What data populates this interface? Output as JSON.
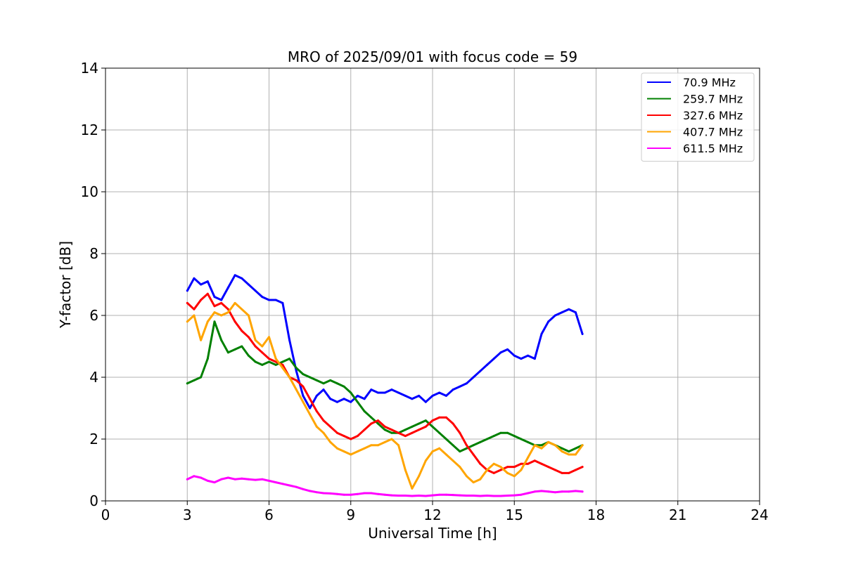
{
  "chart_data": {
    "type": "line",
    "title": "MRO of 2025/09/01 with focus code = 59",
    "xlabel": "Universal Time [h]",
    "ylabel": "Y-factor [dB]",
    "xlim": [
      0,
      24
    ],
    "ylim": [
      0,
      14
    ],
    "xticks": [
      0,
      3,
      6,
      9,
      12,
      15,
      18,
      21,
      24
    ],
    "yticks": [
      0,
      2,
      4,
      6,
      8,
      10,
      12,
      14
    ],
    "grid": true,
    "legend_position": "top-right",
    "series": [
      {
        "name": " 70.9 MHz",
        "color": "#0000ff",
        "x": [
          3.0,
          3.25,
          3.5,
          3.75,
          4.0,
          4.25,
          4.5,
          4.75,
          5.0,
          5.25,
          5.5,
          5.75,
          6.0,
          6.25,
          6.5,
          6.75,
          7.0,
          7.25,
          7.5,
          7.75,
          8.0,
          8.25,
          8.5,
          8.75,
          9.0,
          9.25,
          9.5,
          9.75,
          10.0,
          10.25,
          10.5,
          10.75,
          11.0,
          11.25,
          11.5,
          11.75,
          12.0,
          12.25,
          12.5,
          12.75,
          13.0,
          13.25,
          13.5,
          13.75,
          14.0,
          14.25,
          14.5,
          14.75,
          15.0,
          15.25,
          15.5,
          15.75,
          16.0,
          16.25,
          16.5,
          16.75,
          17.0,
          17.25,
          17.5
        ],
        "y": [
          6.8,
          7.2,
          7.0,
          7.1,
          6.6,
          6.5,
          6.9,
          7.3,
          7.2,
          7.0,
          6.8,
          6.6,
          6.5,
          6.5,
          6.4,
          5.2,
          4.2,
          3.4,
          3.0,
          3.4,
          3.6,
          3.3,
          3.2,
          3.3,
          3.2,
          3.4,
          3.3,
          3.6,
          3.5,
          3.5,
          3.6,
          3.5,
          3.4,
          3.3,
          3.4,
          3.2,
          3.4,
          3.5,
          3.4,
          3.6,
          3.7,
          3.8,
          4.0,
          4.2,
          4.4,
          4.6,
          4.8,
          4.9,
          4.7,
          4.6,
          4.7,
          4.6,
          5.4,
          5.8,
          6.0,
          6.1,
          6.2,
          6.1,
          5.4
        ]
      },
      {
        "name": "259.7 MHz",
        "color": "#008000",
        "x": [
          3.0,
          3.25,
          3.5,
          3.75,
          4.0,
          4.25,
          4.5,
          4.75,
          5.0,
          5.25,
          5.5,
          5.75,
          6.0,
          6.25,
          6.5,
          6.75,
          7.0,
          7.25,
          7.5,
          7.75,
          8.0,
          8.25,
          8.5,
          8.75,
          9.0,
          9.25,
          9.5,
          9.75,
          10.0,
          10.25,
          10.5,
          10.75,
          11.0,
          11.25,
          11.5,
          11.75,
          12.0,
          12.25,
          12.5,
          12.75,
          13.0,
          13.25,
          13.5,
          13.75,
          14.0,
          14.25,
          14.5,
          14.75,
          15.0,
          15.25,
          15.5,
          15.75,
          16.0,
          16.25,
          16.5,
          16.75,
          17.0,
          17.25,
          17.5
        ],
        "y": [
          3.8,
          3.9,
          4.0,
          4.6,
          5.8,
          5.2,
          4.8,
          4.9,
          5.0,
          4.7,
          4.5,
          4.4,
          4.5,
          4.4,
          4.5,
          4.6,
          4.3,
          4.1,
          4.0,
          3.9,
          3.8,
          3.9,
          3.8,
          3.7,
          3.5,
          3.2,
          2.9,
          2.7,
          2.5,
          2.3,
          2.2,
          2.2,
          2.3,
          2.4,
          2.5,
          2.6,
          2.4,
          2.2,
          2.0,
          1.8,
          1.6,
          1.7,
          1.8,
          1.9,
          2.0,
          2.1,
          2.2,
          2.2,
          2.1,
          2.0,
          1.9,
          1.8,
          1.8,
          1.9,
          1.8,
          1.7,
          1.6,
          1.7,
          1.8
        ]
      },
      {
        "name": "327.6 MHz",
        "color": "#ff0000",
        "x": [
          3.0,
          3.25,
          3.5,
          3.75,
          4.0,
          4.25,
          4.5,
          4.75,
          5.0,
          5.25,
          5.5,
          5.75,
          6.0,
          6.25,
          6.5,
          6.75,
          7.0,
          7.25,
          7.5,
          7.75,
          8.0,
          8.25,
          8.5,
          8.75,
          9.0,
          9.25,
          9.5,
          9.75,
          10.0,
          10.25,
          10.5,
          10.75,
          11.0,
          11.25,
          11.5,
          11.75,
          12.0,
          12.25,
          12.5,
          12.75,
          13.0,
          13.25,
          13.5,
          13.75,
          14.0,
          14.25,
          14.5,
          14.75,
          15.0,
          15.25,
          15.5,
          15.75,
          16.0,
          16.25,
          16.5,
          16.75,
          17.0,
          17.25,
          17.5
        ],
        "y": [
          6.4,
          6.2,
          6.5,
          6.7,
          6.3,
          6.4,
          6.2,
          5.8,
          5.5,
          5.3,
          5.0,
          4.8,
          4.6,
          4.5,
          4.4,
          4.0,
          3.9,
          3.7,
          3.3,
          2.9,
          2.6,
          2.4,
          2.2,
          2.1,
          2.0,
          2.1,
          2.3,
          2.5,
          2.6,
          2.4,
          2.3,
          2.2,
          2.1,
          2.2,
          2.3,
          2.4,
          2.6,
          2.7,
          2.7,
          2.5,
          2.2,
          1.8,
          1.5,
          1.2,
          1.0,
          0.9,
          1.0,
          1.1,
          1.1,
          1.2,
          1.2,
          1.3,
          1.2,
          1.1,
          1.0,
          0.9,
          0.9,
          1.0,
          1.1
        ]
      },
      {
        "name": "407.7 MHz",
        "color": "#ffa500",
        "x": [
          3.0,
          3.25,
          3.5,
          3.75,
          4.0,
          4.25,
          4.5,
          4.75,
          5.0,
          5.25,
          5.5,
          5.75,
          6.0,
          6.25,
          6.5,
          6.75,
          7.0,
          7.25,
          7.5,
          7.75,
          8.0,
          8.25,
          8.5,
          8.75,
          9.0,
          9.25,
          9.5,
          9.75,
          10.0,
          10.25,
          10.5,
          10.75,
          11.0,
          11.25,
          11.5,
          11.75,
          12.0,
          12.25,
          12.5,
          12.75,
          13.0,
          13.25,
          13.5,
          13.75,
          14.0,
          14.25,
          14.5,
          14.75,
          15.0,
          15.25,
          15.5,
          15.75,
          16.0,
          16.25,
          16.5,
          16.75,
          17.0,
          17.25,
          17.5
        ],
        "y": [
          5.8,
          6.0,
          5.2,
          5.8,
          6.1,
          6.0,
          6.1,
          6.4,
          6.2,
          6.0,
          5.2,
          5.0,
          5.3,
          4.6,
          4.3,
          4.0,
          3.6,
          3.2,
          2.8,
          2.4,
          2.2,
          1.9,
          1.7,
          1.6,
          1.5,
          1.6,
          1.7,
          1.8,
          1.8,
          1.9,
          2.0,
          1.8,
          1.0,
          0.4,
          0.8,
          1.3,
          1.6,
          1.7,
          1.5,
          1.3,
          1.1,
          0.8,
          0.6,
          0.7,
          1.0,
          1.2,
          1.1,
          0.9,
          0.8,
          1.0,
          1.4,
          1.8,
          1.7,
          1.9,
          1.8,
          1.6,
          1.5,
          1.5,
          1.8
        ]
      },
      {
        "name": "611.5 MHz",
        "color": "#ff00ff",
        "x": [
          3.0,
          3.25,
          3.5,
          3.75,
          4.0,
          4.25,
          4.5,
          4.75,
          5.0,
          5.25,
          5.5,
          5.75,
          6.0,
          6.25,
          6.5,
          6.75,
          7.0,
          7.25,
          7.5,
          7.75,
          8.0,
          8.25,
          8.5,
          8.75,
          9.0,
          9.25,
          9.5,
          9.75,
          10.0,
          10.25,
          10.5,
          10.75,
          11.0,
          11.25,
          11.5,
          11.75,
          12.0,
          12.25,
          12.5,
          12.75,
          13.0,
          13.25,
          13.5,
          13.75,
          14.0,
          14.25,
          14.5,
          14.75,
          15.0,
          15.25,
          15.5,
          15.75,
          16.0,
          16.25,
          16.5,
          16.75,
          17.0,
          17.25,
          17.5
        ],
        "y": [
          0.7,
          0.8,
          0.75,
          0.65,
          0.6,
          0.7,
          0.75,
          0.7,
          0.72,
          0.7,
          0.68,
          0.7,
          0.65,
          0.6,
          0.55,
          0.5,
          0.45,
          0.38,
          0.32,
          0.28,
          0.25,
          0.24,
          0.22,
          0.2,
          0.2,
          0.22,
          0.25,
          0.25,
          0.22,
          0.2,
          0.18,
          0.17,
          0.17,
          0.16,
          0.17,
          0.16,
          0.18,
          0.2,
          0.2,
          0.19,
          0.18,
          0.17,
          0.17,
          0.16,
          0.17,
          0.16,
          0.16,
          0.17,
          0.18,
          0.2,
          0.25,
          0.3,
          0.32,
          0.3,
          0.28,
          0.3,
          0.3,
          0.32,
          0.3
        ]
      }
    ]
  }
}
